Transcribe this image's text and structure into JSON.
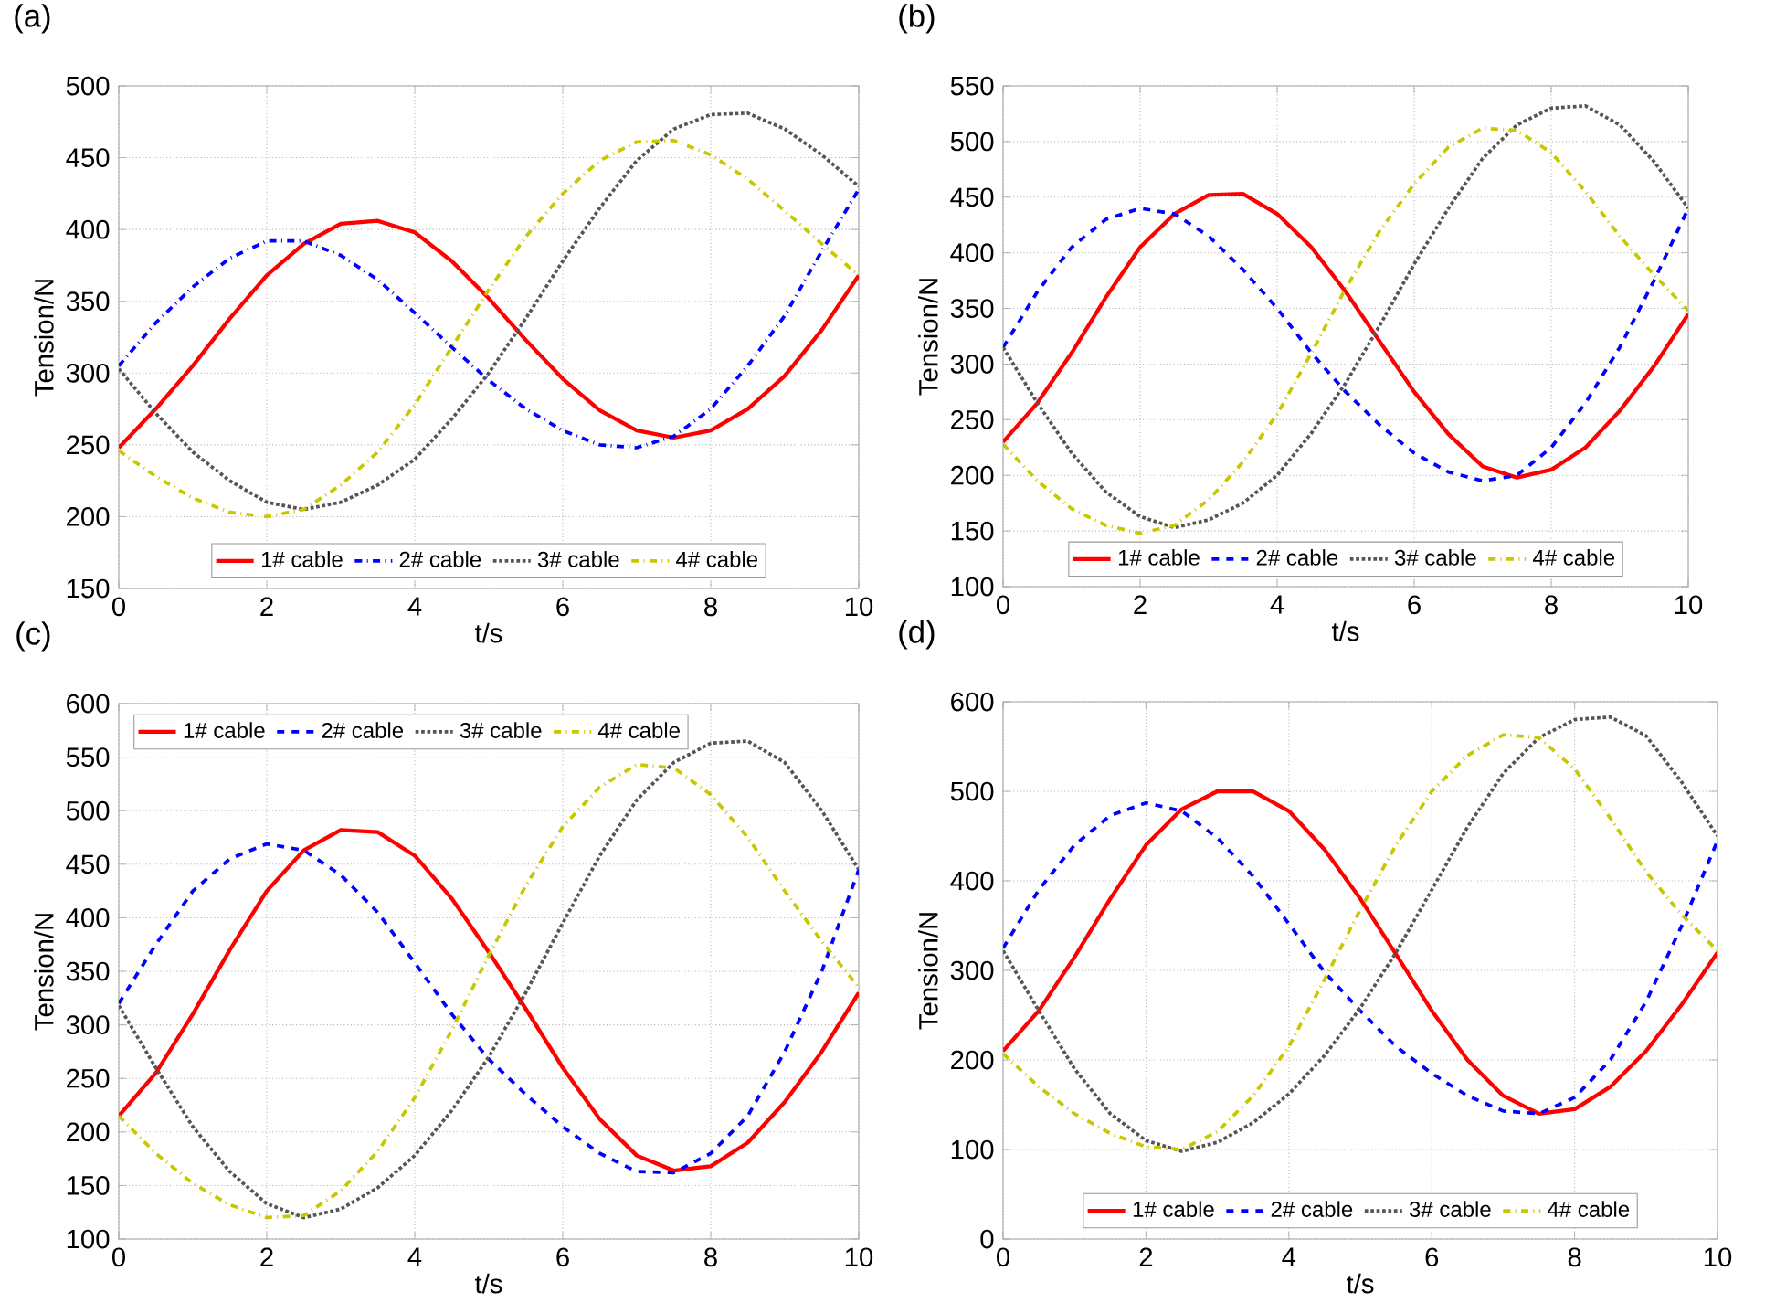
{
  "chart_data": [
    {
      "type": "line",
      "title": "(a)",
      "xlabel": "t/s",
      "ylabel": "Tension/N",
      "x": [
        0,
        0.5,
        1,
        1.5,
        2,
        2.5,
        3,
        3.5,
        4,
        4.5,
        5,
        5.5,
        6,
        6.5,
        7,
        7.5,
        8,
        8.5,
        9,
        9.5,
        10
      ],
      "xlim": [
        0,
        10
      ],
      "ylim": [
        150,
        500
      ],
      "xticks": [
        0,
        2,
        4,
        6,
        8,
        10
      ],
      "yticks": [
        150,
        200,
        250,
        300,
        350,
        400,
        450,
        500
      ],
      "grid": true,
      "legend": "bottom",
      "series": [
        {
          "name": "1# cable",
          "color": "#ff0000",
          "line_style": "solid",
          "values": [
            248,
            275,
            305,
            338,
            368,
            390,
            404,
            406,
            398,
            378,
            352,
            323,
            296,
            274,
            260,
            255,
            260,
            275,
            298,
            330,
            368
          ]
        },
        {
          "name": "2# cable",
          "color": "#0000ff",
          "line_style": "dashdot",
          "values": [
            305,
            335,
            360,
            380,
            392,
            392,
            382,
            365,
            342,
            318,
            295,
            275,
            260,
            250,
            248,
            256,
            275,
            305,
            340,
            385,
            428
          ]
        },
        {
          "name": "3# cable",
          "color": "#555555",
          "line_style": "dotted",
          "values": [
            303,
            272,
            245,
            225,
            210,
            205,
            210,
            222,
            240,
            268,
            300,
            338,
            378,
            415,
            448,
            470,
            480,
            481,
            470,
            452,
            430
          ]
        },
        {
          "name": "4# cable",
          "color": "#c8c800",
          "line_style": "dashdot",
          "values": [
            246,
            228,
            213,
            203,
            200,
            205,
            222,
            245,
            278,
            318,
            358,
            395,
            425,
            448,
            461,
            462,
            452,
            435,
            413,
            390,
            368
          ]
        }
      ]
    },
    {
      "type": "line",
      "title": "(b)",
      "xlabel": "t/s",
      "ylabel": "Tension/N",
      "x": [
        0,
        0.5,
        1,
        1.5,
        2,
        2.5,
        3,
        3.5,
        4,
        4.5,
        5,
        5.5,
        6,
        6.5,
        7,
        7.5,
        8,
        8.5,
        9,
        9.5,
        10
      ],
      "xlim": [
        0,
        10
      ],
      "ylim": [
        100,
        550
      ],
      "xticks": [
        0,
        2,
        4,
        6,
        8,
        10
      ],
      "yticks": [
        100,
        150,
        200,
        250,
        300,
        350,
        400,
        450,
        500,
        550
      ],
      "grid": true,
      "legend": "bottom",
      "series": [
        {
          "name": "1# cable",
          "color": "#ff0000",
          "line_style": "solid",
          "values": [
            230,
            265,
            310,
            360,
            405,
            435,
            452,
            453,
            435,
            405,
            365,
            320,
            275,
            237,
            208,
            198,
            205,
            225,
            258,
            298,
            345
          ]
        },
        {
          "name": "2# cable",
          "color": "#0000ff",
          "line_style": "dashed",
          "values": [
            315,
            365,
            405,
            430,
            440,
            435,
            415,
            385,
            350,
            310,
            275,
            245,
            220,
            203,
            195,
            200,
            225,
            265,
            315,
            375,
            440
          ]
        },
        {
          "name": "3# cable",
          "color": "#555555",
          "line_style": "dotted",
          "values": [
            315,
            265,
            220,
            185,
            163,
            153,
            160,
            175,
            200,
            238,
            283,
            335,
            390,
            440,
            485,
            515,
            530,
            532,
            515,
            482,
            440
          ]
        },
        {
          "name": "4# cable",
          "color": "#c8c800",
          "line_style": "dashdot",
          "values": [
            228,
            195,
            170,
            155,
            148,
            155,
            178,
            212,
            255,
            310,
            368,
            420,
            462,
            495,
            512,
            510,
            490,
            455,
            415,
            380,
            348
          ]
        }
      ]
    },
    {
      "type": "line",
      "title": "(c)",
      "xlabel": "t/s",
      "ylabel": "Tension/N",
      "x": [
        0,
        0.5,
        1,
        1.5,
        2,
        2.5,
        3,
        3.5,
        4,
        4.5,
        5,
        5.5,
        6,
        6.5,
        7,
        7.5,
        8,
        8.5,
        9,
        9.5,
        10
      ],
      "xlim": [
        0,
        10
      ],
      "ylim": [
        100,
        600
      ],
      "xticks": [
        0,
        2,
        4,
        6,
        8,
        10
      ],
      "yticks": [
        100,
        150,
        200,
        250,
        300,
        350,
        400,
        450,
        500,
        550,
        600
      ],
      "grid": true,
      "legend": "top left",
      "series": [
        {
          "name": "1# cable",
          "color": "#ff0000",
          "line_style": "solid",
          "values": [
            215,
            255,
            310,
            370,
            425,
            463,
            482,
            480,
            458,
            418,
            368,
            315,
            260,
            212,
            178,
            164,
            168,
            190,
            228,
            275,
            330
          ]
        },
        {
          "name": "2# cable",
          "color": "#0000ff",
          "line_style": "dashed",
          "values": [
            320,
            375,
            425,
            455,
            469,
            463,
            440,
            405,
            358,
            310,
            268,
            235,
            205,
            180,
            163,
            162,
            180,
            215,
            275,
            350,
            445
          ]
        },
        {
          "name": "3# cable",
          "color": "#555555",
          "line_style": "dotted",
          "values": [
            318,
            260,
            205,
            163,
            133,
            120,
            128,
            148,
            178,
            220,
            270,
            330,
            395,
            458,
            510,
            545,
            563,
            565,
            545,
            500,
            445
          ]
        },
        {
          "name": "4# cable",
          "color": "#c8c800",
          "line_style": "dashdot",
          "values": [
            215,
            180,
            152,
            132,
            120,
            122,
            145,
            182,
            232,
            295,
            365,
            430,
            485,
            522,
            543,
            540,
            515,
            475,
            425,
            378,
            335
          ]
        }
      ]
    },
    {
      "type": "line",
      "title": "(d)",
      "xlabel": "t/s",
      "ylabel": "Tension/N",
      "x": [
        0,
        0.5,
        1,
        1.5,
        2,
        2.5,
        3,
        3.5,
        4,
        4.5,
        5,
        5.5,
        6,
        6.5,
        7,
        7.5,
        8,
        8.5,
        9,
        9.5,
        10
      ],
      "xlim": [
        0,
        10
      ],
      "ylim": [
        0,
        600
      ],
      "xticks": [
        0,
        2,
        4,
        6,
        8,
        10
      ],
      "yticks": [
        0,
        100,
        200,
        300,
        400,
        500,
        600
      ],
      "grid": true,
      "legend": "bottom",
      "series": [
        {
          "name": "1# cable",
          "color": "#ff0000",
          "line_style": "solid",
          "values": [
            210,
            255,
            315,
            380,
            440,
            480,
            500,
            500,
            478,
            435,
            380,
            318,
            255,
            200,
            160,
            140,
            145,
            170,
            210,
            262,
            320
          ]
        },
        {
          "name": "2# cable",
          "color": "#0000ff",
          "line_style": "dashed",
          "values": [
            325,
            390,
            440,
            473,
            487,
            478,
            448,
            405,
            352,
            298,
            255,
            215,
            185,
            160,
            143,
            140,
            158,
            200,
            265,
            350,
            445
          ]
        },
        {
          "name": "3# cable",
          "color": "#555555",
          "line_style": "dotted",
          "values": [
            322,
            255,
            190,
            140,
            110,
            98,
            108,
            130,
            162,
            205,
            258,
            320,
            390,
            460,
            520,
            560,
            580,
            583,
            562,
            510,
            450
          ]
        },
        {
          "name": "4# cable",
          "color": "#c8c800",
          "line_style": "dashdot",
          "values": [
            207,
            170,
            140,
            118,
            103,
            100,
            120,
            160,
            215,
            290,
            368,
            440,
            500,
            540,
            563,
            560,
            525,
            470,
            410,
            362,
            322
          ]
        }
      ]
    }
  ]
}
